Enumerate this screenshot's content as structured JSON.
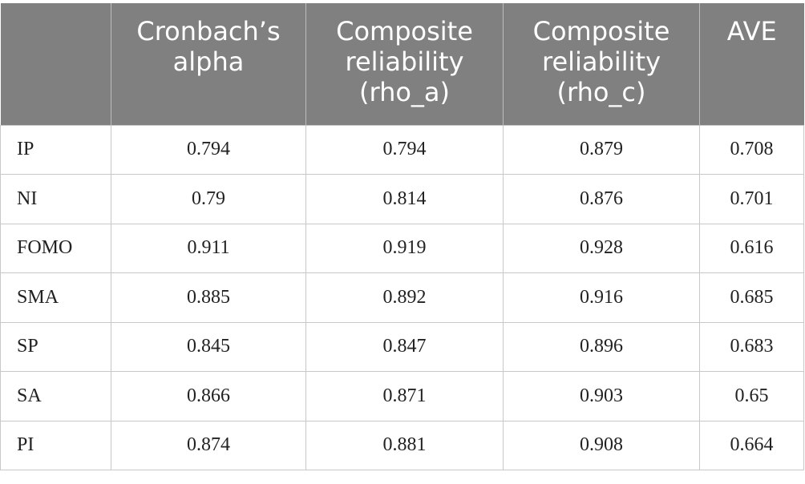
{
  "table": {
    "columns": [
      "Cronbach’s alpha",
      "Composite reliability (rho_a)",
      "Composite reliability (rho_c)",
      "AVE"
    ],
    "rows": [
      [
        "IP",
        0.794,
        0.794,
        0.879,
        0.708
      ],
      [
        "NI",
        0.79,
        0.814,
        0.876,
        0.701
      ],
      [
        "FOMO",
        0.911,
        0.919,
        0.928,
        0.616
      ],
      [
        "SMA",
        0.885,
        0.892,
        0.916,
        0.685
      ],
      [
        "SP",
        0.845,
        0.847,
        0.896,
        0.683
      ],
      [
        "SA",
        0.866,
        0.871,
        0.903,
        0.65
      ],
      [
        "PI",
        0.874,
        0.881,
        0.908,
        0.664
      ]
    ]
  }
}
